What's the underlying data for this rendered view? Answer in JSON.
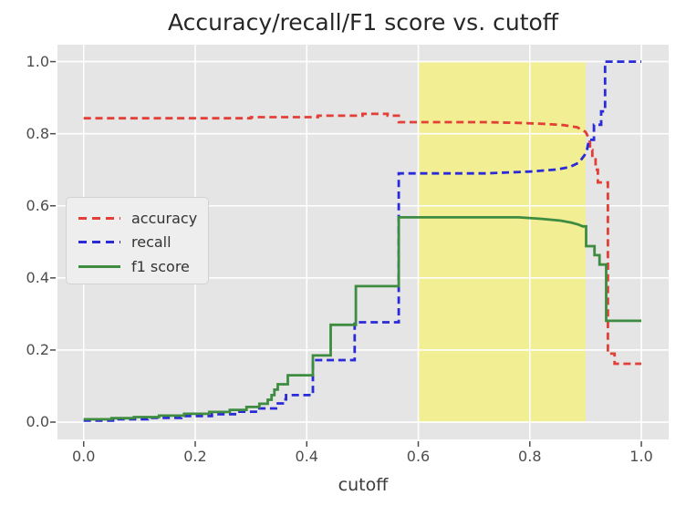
{
  "chart_data": {
    "type": "line",
    "title": "Accuracy/recall/F1 score vs. cutoff",
    "xlabel": "cutoff",
    "ylabel": "",
    "grid": true,
    "background_color": "#e5e5e5",
    "grid_color": "#ffffff",
    "tick_color": "#4d4d4d",
    "xlim": [
      -0.047,
      1.049
    ],
    "ylim": [
      -0.048,
      1.047
    ],
    "xticks": [
      0.0,
      0.2,
      0.4,
      0.6,
      0.8,
      1.0
    ],
    "xtick_labels": [
      "0.0",
      "0.2",
      "0.4",
      "0.6",
      "0.8",
      "1.0"
    ],
    "yticks": [
      0.0,
      0.2,
      0.4,
      0.6,
      0.8,
      1.0
    ],
    "ytick_labels": [
      "0.0",
      "0.2",
      "0.4",
      "0.6",
      "0.8",
      "1.0"
    ],
    "legend_position": "center-left",
    "highlight_span": {
      "x0": 0.6,
      "x1": 0.9,
      "y0": 0.0,
      "y1": 1.0,
      "color": "#f2ee93"
    },
    "series": [
      {
        "name": "accuracy",
        "color": "#e23f36",
        "dash": "dashed",
        "points": [
          [
            0,
            0.843
          ],
          [
            0.3,
            0.843
          ],
          [
            0.3,
            0.846
          ],
          [
            0.42,
            0.846
          ],
          [
            0.42,
            0.85
          ],
          [
            0.5,
            0.85
          ],
          [
            0.5,
            0.855
          ],
          [
            0.545,
            0.855
          ],
          [
            0.545,
            0.85
          ],
          [
            0.565,
            0.85
          ],
          [
            0.565,
            0.832
          ],
          [
            0.72,
            0.832
          ],
          [
            0.78,
            0.83
          ],
          [
            0.83,
            0.827
          ],
          [
            0.86,
            0.824
          ],
          [
            0.885,
            0.818
          ],
          [
            0.9,
            0.805
          ],
          [
            0.905,
            0.79
          ],
          [
            0.908,
            0.775
          ],
          [
            0.908,
            0.755
          ],
          [
            0.912,
            0.755
          ],
          [
            0.912,
            0.733
          ],
          [
            0.918,
            0.733
          ],
          [
            0.918,
            0.7
          ],
          [
            0.922,
            0.7
          ],
          [
            0.922,
            0.665
          ],
          [
            0.94,
            0.665
          ],
          [
            0.94,
            0.19
          ],
          [
            0.952,
            0.19
          ],
          [
            0.952,
            0.162
          ],
          [
            1.0,
            0.162
          ]
        ]
      },
      {
        "name": "recall",
        "color": "#2a2ad9",
        "dash": "dashed",
        "points": [
          [
            0,
            0.004
          ],
          [
            0.055,
            0.004
          ],
          [
            0.055,
            0.008
          ],
          [
            0.115,
            0.008
          ],
          [
            0.115,
            0.012
          ],
          [
            0.175,
            0.012
          ],
          [
            0.175,
            0.017
          ],
          [
            0.23,
            0.017
          ],
          [
            0.23,
            0.022
          ],
          [
            0.275,
            0.022
          ],
          [
            0.275,
            0.029
          ],
          [
            0.315,
            0.029
          ],
          [
            0.315,
            0.038
          ],
          [
            0.345,
            0.038
          ],
          [
            0.345,
            0.052
          ],
          [
            0.357,
            0.052
          ],
          [
            0.357,
            0.063
          ],
          [
            0.363,
            0.063
          ],
          [
            0.363,
            0.075
          ],
          [
            0.411,
            0.075
          ],
          [
            0.411,
            0.172
          ],
          [
            0.486,
            0.172
          ],
          [
            0.486,
            0.277
          ],
          [
            0.565,
            0.277
          ],
          [
            0.565,
            0.69
          ],
          [
            0.72,
            0.69
          ],
          [
            0.8,
            0.695
          ],
          [
            0.85,
            0.701
          ],
          [
            0.872,
            0.708
          ],
          [
            0.888,
            0.72
          ],
          [
            0.898,
            0.74
          ],
          [
            0.903,
            0.758
          ],
          [
            0.906,
            0.783
          ],
          [
            0.915,
            0.783
          ],
          [
            0.915,
            0.825
          ],
          [
            0.928,
            0.825
          ],
          [
            0.928,
            0.862
          ],
          [
            0.935,
            0.862
          ],
          [
            0.935,
            1.0
          ],
          [
            1.0,
            1.0
          ]
        ]
      },
      {
        "name": "f1 score",
        "color": "#3d8c40",
        "dash": "solid",
        "points": [
          [
            0,
            0.008
          ],
          [
            0.05,
            0.008
          ],
          [
            0.05,
            0.011
          ],
          [
            0.09,
            0.011
          ],
          [
            0.09,
            0.014
          ],
          [
            0.135,
            0.014
          ],
          [
            0.135,
            0.018
          ],
          [
            0.18,
            0.018
          ],
          [
            0.18,
            0.023
          ],
          [
            0.225,
            0.023
          ],
          [
            0.225,
            0.028
          ],
          [
            0.262,
            0.028
          ],
          [
            0.262,
            0.034
          ],
          [
            0.292,
            0.034
          ],
          [
            0.292,
            0.042
          ],
          [
            0.315,
            0.042
          ],
          [
            0.315,
            0.051
          ],
          [
            0.33,
            0.051
          ],
          [
            0.33,
            0.062
          ],
          [
            0.337,
            0.062
          ],
          [
            0.337,
            0.075
          ],
          [
            0.342,
            0.075
          ],
          [
            0.342,
            0.09
          ],
          [
            0.348,
            0.09
          ],
          [
            0.348,
            0.105
          ],
          [
            0.366,
            0.105
          ],
          [
            0.366,
            0.13
          ],
          [
            0.411,
            0.13
          ],
          [
            0.411,
            0.185
          ],
          [
            0.443,
            0.185
          ],
          [
            0.443,
            0.27
          ],
          [
            0.488,
            0.27
          ],
          [
            0.488,
            0.377
          ],
          [
            0.565,
            0.377
          ],
          [
            0.565,
            0.568
          ],
          [
            0.78,
            0.568
          ],
          [
            0.82,
            0.564
          ],
          [
            0.855,
            0.559
          ],
          [
            0.875,
            0.553
          ],
          [
            0.887,
            0.548
          ],
          [
            0.895,
            0.543
          ],
          [
            0.901,
            0.543
          ],
          [
            0.901,
            0.488
          ],
          [
            0.916,
            0.488
          ],
          [
            0.916,
            0.463
          ],
          [
            0.925,
            0.463
          ],
          [
            0.925,
            0.437
          ],
          [
            0.937,
            0.437
          ],
          [
            0.937,
            0.281
          ],
          [
            1.0,
            0.281
          ]
        ]
      }
    ]
  }
}
